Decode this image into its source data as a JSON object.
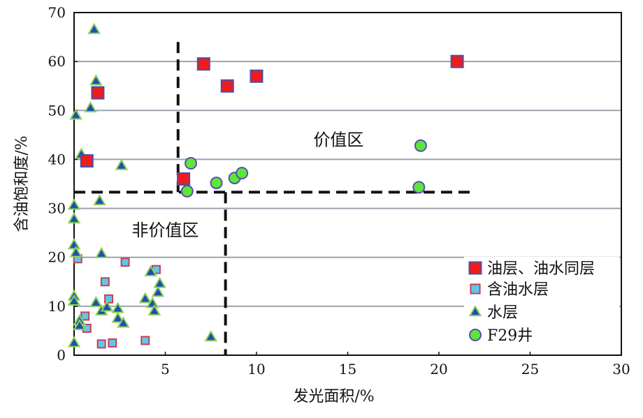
{
  "chart_data": {
    "type": "scatter",
    "xlabel": "发光面积/%",
    "ylabel": "含油饱和度/%",
    "xlim": [
      0,
      30
    ],
    "ylim": [
      0,
      70
    ],
    "xticks": [
      "5",
      "10",
      "15",
      "20",
      "25",
      "30"
    ],
    "yticks": [
      "0",
      "10",
      "20",
      "30",
      "40",
      "50",
      "60",
      "70"
    ],
    "grid": "horizontal",
    "legend_position": "bottom-right",
    "annotations": [
      {
        "text": "价值区",
        "x": 14.5,
        "y": 44
      },
      {
        "text": "非价值区",
        "x": 5.0,
        "y": 25.5
      }
    ],
    "cutoffs": {
      "x_upper": 5.7,
      "x_lower": 8.3,
      "y": 33.3
    },
    "series": [
      {
        "name": "油层、油水同层",
        "marker": "filled-square",
        "color": "#ee1c1c",
        "edge": "#4a4fa8",
        "points": [
          [
            1.3,
            53.6
          ],
          [
            0.7,
            39.7
          ],
          [
            6.0,
            36.0
          ],
          [
            7.1,
            59.5
          ],
          [
            8.4,
            55.0
          ],
          [
            10.0,
            57.0
          ],
          [
            21.0,
            60.0
          ]
        ]
      },
      {
        "name": "含油水层",
        "marker": "square",
        "color": "#62c6e6",
        "edge": "#c6405a",
        "points": [
          [
            0.2,
            19.7
          ],
          [
            0.6,
            8.0
          ],
          [
            0.7,
            5.5
          ],
          [
            1.5,
            2.3
          ],
          [
            1.7,
            15.0
          ],
          [
            1.9,
            11.5
          ],
          [
            2.1,
            2.5
          ],
          [
            2.8,
            19.0
          ],
          [
            3.9,
            3.0
          ],
          [
            4.5,
            17.5
          ]
        ]
      },
      {
        "name": "水层",
        "marker": "triangle",
        "color": "#1f4fb0",
        "edge": "#8fd35a",
        "points": [
          [
            1.1,
            66.5
          ],
          [
            1.2,
            56.0
          ],
          [
            0.9,
            50.5
          ],
          [
            0.1,
            49.0
          ],
          [
            0.4,
            41.0
          ],
          [
            2.6,
            38.7
          ],
          [
            1.4,
            31.5
          ],
          [
            0.0,
            30.6
          ],
          [
            0.0,
            27.8
          ],
          [
            0.0,
            22.5
          ],
          [
            0.1,
            20.9
          ],
          [
            1.5,
            20.7
          ],
          [
            0.0,
            12.0
          ],
          [
            0.0,
            11.0
          ],
          [
            0.0,
            2.5
          ],
          [
            0.3,
            7.0
          ],
          [
            0.3,
            6.0
          ],
          [
            1.2,
            10.7
          ],
          [
            1.5,
            9.0
          ],
          [
            1.8,
            9.8
          ],
          [
            2.4,
            9.5
          ],
          [
            2.4,
            7.5
          ],
          [
            2.7,
            6.5
          ],
          [
            3.9,
            11.5
          ],
          [
            4.2,
            17.0
          ],
          [
            4.3,
            10.5
          ],
          [
            4.4,
            9.0
          ],
          [
            4.6,
            12.8
          ],
          [
            4.7,
            14.6
          ],
          [
            7.5,
            3.7
          ]
        ]
      },
      {
        "name": "F29井",
        "marker": "circle",
        "color": "#5ce63a",
        "edge": "#5a4fb0",
        "points": [
          [
            6.4,
            39.2
          ],
          [
            6.2,
            33.5
          ],
          [
            7.8,
            35.2
          ],
          [
            8.8,
            36.2
          ],
          [
            9.2,
            37.2
          ],
          [
            18.9,
            34.3
          ],
          [
            19.0,
            42.8
          ]
        ]
      }
    ]
  }
}
